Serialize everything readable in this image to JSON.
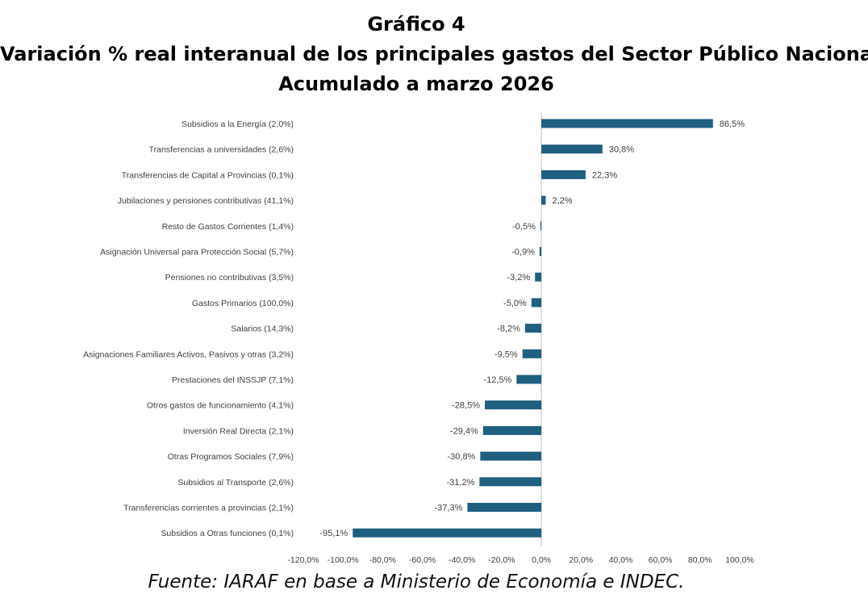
{
  "header": {
    "title": "Gráfico 4",
    "subtitle": "Variación % real interanual de los principales gastos del Sector Público Nacional",
    "subtitle2": "Acumulado a marzo 2026"
  },
  "footer": {
    "source": "Fuente: IARAF en base a Ministerio de Economía e INDEC."
  },
  "chart_data": {
    "type": "bar",
    "orientation": "horizontal",
    "bar_color": "#1f5f7f",
    "categories": [
      "Subsidios a la Energía (2,0%)",
      "Transferencias a universidades (2,6%)",
      "Transferencias de Capital a Provincias (0,1%)",
      "Jubilaciones y pensiones contributivas (41,1%)",
      "Resto de Gastos Corrientes (1,4%)",
      "Asignación Universal para Protección Social (5,7%)",
      "Pensiones no contributivas (3,5%)",
      "Gastos Primarios (100,0%)",
      "Salarios (14,3%)",
      "Asignaciones Familiares Activos, Pasivos y otras (3,2%)",
      "Prestaciones del INSSJP (7,1%)",
      "Otros gastos de funcionamiento (4,1%)",
      "Inversión Real Directa (2,1%)",
      "Otras Programos Sociales  (7,9%)",
      "Subsidios al Transporte (2,6%)",
      "Transferencias corrientes a provincias (2,1%)",
      "Subsidios a Otras funciones (0,1%)"
    ],
    "values": [
      86.5,
      30.8,
      22.3,
      2.2,
      -0.5,
      -0.9,
      -3.2,
      -5.0,
      -8.2,
      -9.5,
      -12.5,
      -28.5,
      -29.4,
      -30.8,
      -31.2,
      -37.3,
      -95.1
    ],
    "value_labels": [
      "86,5%",
      "30,8%",
      "22,3%",
      "2,2%",
      "-0,5%",
      "-0,9%",
      "-3,2%",
      "-5,0%",
      "-8,2%",
      "-9,5%",
      "-12,5%",
      "-28,5%",
      "-29,4%",
      "-30,8%",
      "-31,2%",
      "-37,3%",
      "-95,1%"
    ],
    "x_ticks": [
      -120,
      -100,
      -80,
      -60,
      -40,
      -20,
      0,
      20,
      40,
      60,
      80,
      100
    ],
    "x_tick_labels": [
      "-120,0%",
      "-100,0%",
      "-80,0%",
      "-60,0%",
      "-40,0%",
      "-20,0%",
      "0,0%",
      "20,0%",
      "40,0%",
      "60,0%",
      "80,0%",
      "100,0%"
    ],
    "xlim": [
      -120,
      100
    ],
    "grid": false,
    "xlabel": "",
    "ylabel": ""
  }
}
